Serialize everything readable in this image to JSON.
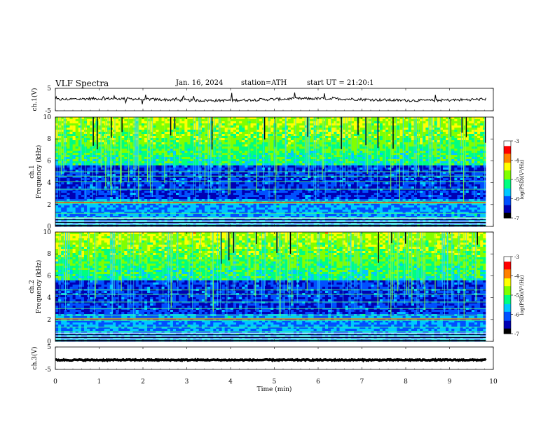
{
  "header": {
    "title": "VLF Spectra",
    "date": "Jan. 16, 2024",
    "station": "station=ATH",
    "start": "start UT =  21:20:1"
  },
  "colors": {
    "colormap": [
      "#000000",
      "#0000b4",
      "#0050ff",
      "#00c8ff",
      "#00ff80",
      "#80ff00",
      "#ffff00",
      "#ff8000",
      "#ff0000",
      "#ffffff"
    ],
    "trace": "#000000"
  },
  "chart_data": [
    {
      "panel": "ch1-waveform",
      "type": "line",
      "ylabel": "ch.1(V)",
      "yticks": [
        "5",
        "-5"
      ],
      "ylim": [
        -5,
        5
      ],
      "xlim": [
        0,
        10
      ],
      "baseline_v": 0
    },
    {
      "panel": "ch1-spectrogram",
      "type": "heatmap",
      "ylabel": "ch.1\nFrequency (kHz)",
      "yticks": [
        "0",
        "2",
        "4",
        "6",
        "8",
        "10"
      ],
      "ylim": [
        0,
        10
      ],
      "xlim": [
        0,
        10
      ],
      "data_end_min": 9.83,
      "colorbar": {
        "label": "log(PSD)(V²/Hz)",
        "ticks": [
          "-3",
          "-4",
          "-5",
          "-6",
          "-7"
        ],
        "range": [
          -7,
          -3
        ]
      },
      "bands_khz": [
        0.2,
        0.5,
        0.8,
        1.2,
        2.1,
        2.3,
        3.4,
        4.1,
        4.6,
        5.0
      ]
    },
    {
      "panel": "ch2-spectrogram",
      "type": "heatmap",
      "ylabel": "ch.2\nFrequency (kHz)",
      "yticks": [
        "0",
        "2",
        "4",
        "6",
        "8",
        "10"
      ],
      "ylim": [
        0,
        10
      ],
      "xlim": [
        0,
        10
      ],
      "data_end_min": 9.83,
      "colorbar": {
        "label": "log(PSD)(V²/Hz)",
        "ticks": [
          "-3",
          "-4",
          "-5",
          "-6",
          "-7"
        ],
        "range": [
          -7,
          -3
        ]
      },
      "bands_khz": [
        0.2,
        0.5,
        0.9,
        1.3,
        1.9,
        2.1,
        2.4,
        3.0,
        3.6,
        4.3,
        4.7
      ]
    },
    {
      "panel": "ch3-waveform",
      "type": "line",
      "ylabel": "ch.3(V)",
      "yticks": [
        "5",
        "-5"
      ],
      "ylim": [
        -5,
        5
      ],
      "xlim": [
        0,
        10
      ],
      "baseline_v": -0.8,
      "xlabel": "Time (min)",
      "xticks": [
        "0",
        "1",
        "2",
        "3",
        "4",
        "5",
        "6",
        "7",
        "8",
        "9",
        "10"
      ]
    }
  ]
}
